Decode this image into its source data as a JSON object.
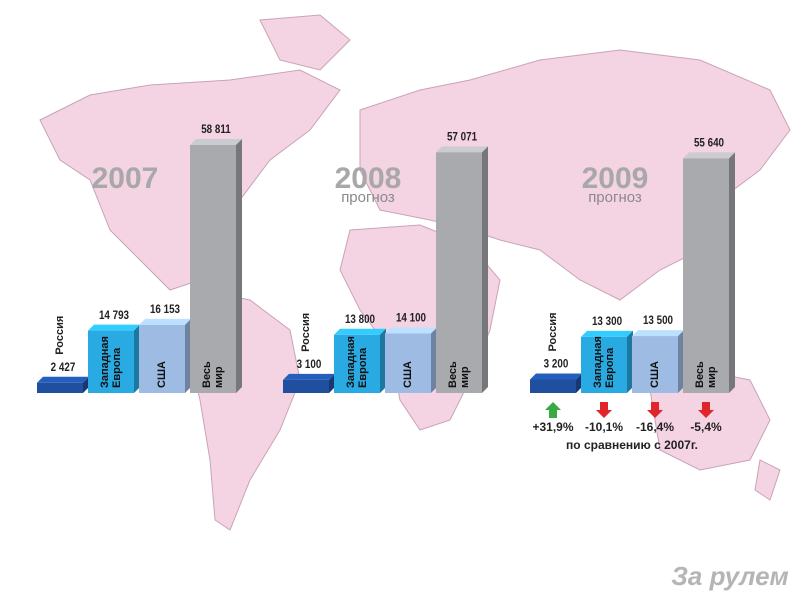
{
  "chart_data": [
    {
      "type": "bar",
      "title": "2007",
      "categories": [
        "Россия",
        "Западная Европа",
        "США",
        "Весь мир"
      ],
      "values": [
        2427,
        14793,
        16153,
        58811
      ],
      "value_labels": [
        "2 427",
        "14 793",
        "16 153",
        "58 811"
      ],
      "colors": [
        "#1f4f9e",
        "#2aaae2",
        "#9dbbe3",
        "#a9aaae"
      ]
    },
    {
      "type": "bar",
      "title": "2008",
      "subtitle": "прогноз",
      "categories": [
        "Россия",
        "Западная Европа",
        "США",
        "Весь мир"
      ],
      "values": [
        3100,
        13800,
        14100,
        57071
      ],
      "value_labels": [
        "3 100",
        "13 800",
        "14 100",
        "57 071"
      ],
      "colors": [
        "#1f4f9e",
        "#2aaae2",
        "#9dbbe3",
        "#a9aaae"
      ]
    },
    {
      "type": "bar",
      "title": "2009",
      "subtitle": "прогноз",
      "categories": [
        "Россия",
        "Западная Европа",
        "США",
        "Весь мир"
      ],
      "values": [
        3200,
        13300,
        13500,
        55640
      ],
      "value_labels": [
        "3 200",
        "13 300",
        "13 500",
        "55 640"
      ],
      "colors": [
        "#1f4f9e",
        "#2aaae2",
        "#9dbbe3",
        "#a9aaae"
      ],
      "changes": {
        "values": [
          31.9,
          -10.1,
          -16.4,
          -5.4
        ],
        "value_labels": [
          "+31,9%",
          "-10,1%",
          "-16,4%",
          "-5,4%"
        ],
        "note": "по сравнению с 2007г."
      }
    }
  ],
  "brand": "За рулем"
}
